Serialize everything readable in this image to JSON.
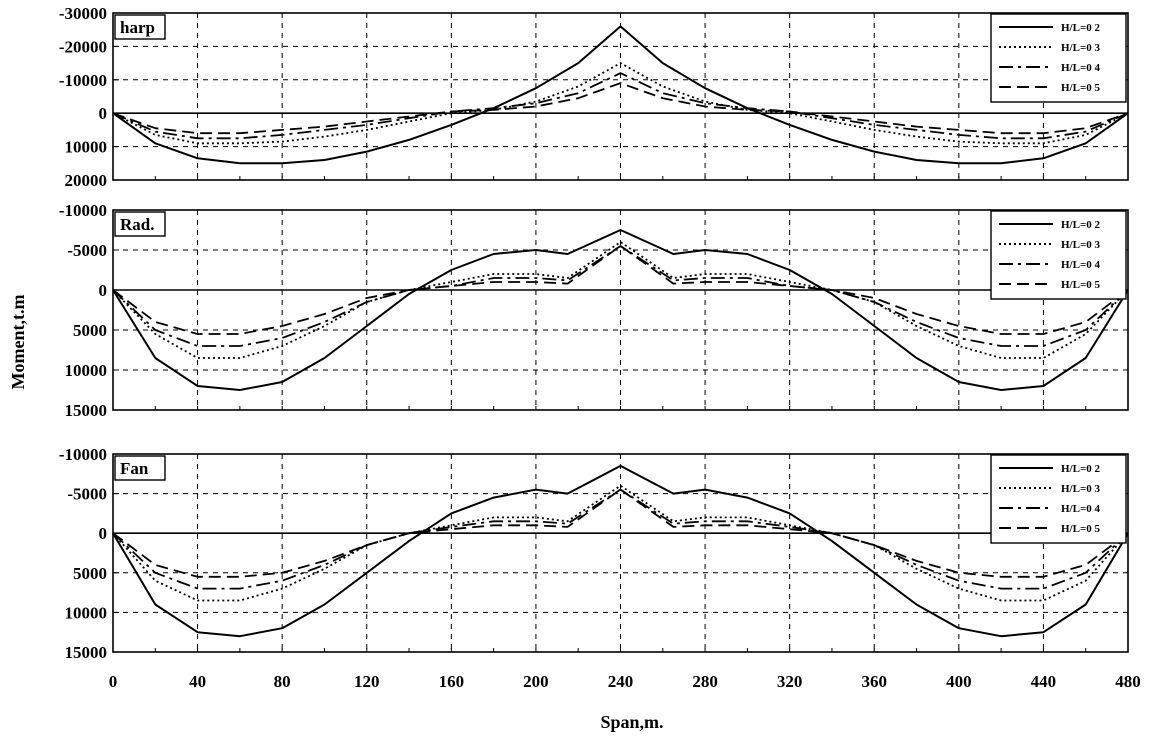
{
  "chart_data": {
    "type": "line",
    "xlabel": "Span,m.",
    "ylabel": "Moment,t.m",
    "x_ticks": [
      "0",
      "40",
      "80",
      "120",
      "160",
      "200",
      "240",
      "280",
      "320",
      "360",
      "400",
      "440",
      "480"
    ],
    "xlim": [
      0,
      480
    ],
    "grid": true,
    "legend_position": "top-right",
    "line_styles": [
      "solid",
      "dotted",
      "dashdot",
      "dashed"
    ],
    "panels": [
      {
        "title": "harp",
        "y_ticks": [
          "-30000",
          "-20000",
          "-10000",
          "0",
          "10000",
          "20000"
        ],
        "ylim": [
          -30000,
          20000
        ],
        "y_inverted": true,
        "legend": [
          "H/L=0 2",
          "H/L=0 3",
          "H/L=0 4",
          "H/L=0 5"
        ],
        "series": [
          {
            "name": "H/L=0 2",
            "x": [
              0,
              20,
              40,
              60,
              80,
              100,
              120,
              140,
              160,
              180,
              200,
              220,
              240,
              260,
              280,
              300,
              320,
              340,
              360,
              380,
              400,
              420,
              440,
              460,
              480
            ],
            "y": [
              0,
              9000,
              13500,
              15000,
              15000,
              14000,
              11500,
              8000,
              3500,
              -1500,
              -7500,
              -15000,
              -26000,
              -15000,
              -7500,
              -1500,
              3500,
              8000,
              11500,
              14000,
              15000,
              15000,
              13500,
              9000,
              0
            ]
          },
          {
            "name": "H/L=0 3",
            "x": [
              0,
              20,
              40,
              60,
              80,
              100,
              120,
              140,
              160,
              180,
              200,
              220,
              240,
              260,
              280,
              300,
              320,
              340,
              360,
              380,
              400,
              420,
              440,
              460,
              480
            ],
            "y": [
              0,
              6500,
              9000,
              9000,
              8500,
              7000,
              5000,
              2500,
              0,
              -1000,
              -3500,
              -8000,
              -15000,
              -8000,
              -3500,
              -1000,
              0,
              2500,
              5000,
              7000,
              8500,
              9000,
              9000,
              6500,
              0
            ]
          },
          {
            "name": "H/L=0 4",
            "x": [
              0,
              20,
              40,
              60,
              80,
              100,
              120,
              140,
              160,
              180,
              200,
              220,
              240,
              260,
              280,
              300,
              320,
              340,
              360,
              380,
              400,
              420,
              440,
              460,
              480
            ],
            "y": [
              0,
              5500,
              7500,
              7500,
              6500,
              5000,
              3500,
              1500,
              -500,
              -1500,
              -3000,
              -6000,
              -12000,
              -6000,
              -3000,
              -1500,
              -500,
              1500,
              3500,
              5000,
              6500,
              7500,
              7500,
              5500,
              0
            ]
          },
          {
            "name": "H/L=0 5",
            "x": [
              0,
              20,
              40,
              60,
              80,
              100,
              120,
              140,
              160,
              180,
              200,
              220,
              240,
              260,
              280,
              300,
              320,
              340,
              360,
              380,
              400,
              420,
              440,
              460,
              480
            ],
            "y": [
              0,
              4500,
              6000,
              6000,
              5000,
              4000,
              2500,
              1000,
              -500,
              -1000,
              -2000,
              -4500,
              -9000,
              -4500,
              -2000,
              -1000,
              -500,
              1000,
              2500,
              4000,
              5000,
              6000,
              6000,
              4500,
              0
            ]
          }
        ]
      },
      {
        "title": "Rad.",
        "y_ticks": [
          "-10000",
          "-5000",
          "0",
          "5000",
          "10000",
          "15000"
        ],
        "ylim": [
          -10000,
          15000
        ],
        "y_inverted": true,
        "legend": [
          "H/L=0 2",
          "H/L=0 3",
          "H/L=0 4",
          "H/L=0 5"
        ],
        "series": [
          {
            "name": "H/L=0 2",
            "x": [
              0,
              20,
              40,
              60,
              80,
              100,
              120,
              140,
              160,
              180,
              200,
              215,
              240,
              265,
              280,
              300,
              320,
              340,
              360,
              380,
              400,
              420,
              440,
              460,
              480
            ],
            "y": [
              0,
              8500,
              12000,
              12500,
              11500,
              8500,
              4500,
              500,
              -2500,
              -4500,
              -5000,
              -4500,
              -7500,
              -4500,
              -5000,
              -4500,
              -2500,
              500,
              4500,
              8500,
              11500,
              12500,
              12000,
              8500,
              0
            ]
          },
          {
            "name": "H/L=0 3",
            "x": [
              0,
              20,
              40,
              60,
              80,
              100,
              120,
              140,
              160,
              180,
              200,
              215,
              240,
              265,
              280,
              300,
              320,
              340,
              360,
              380,
              400,
              420,
              440,
              460,
              480
            ],
            "y": [
              0,
              5500,
              8500,
              8500,
              7000,
              4500,
              1500,
              0,
              -1000,
              -2000,
              -2000,
              -1500,
              -6000,
              -1500,
              -2000,
              -2000,
              -1000,
              0,
              1500,
              4500,
              7000,
              8500,
              8500,
              5500,
              0
            ]
          },
          {
            "name": "H/L=0 4",
            "x": [
              0,
              20,
              40,
              60,
              80,
              100,
              120,
              140,
              160,
              180,
              200,
              215,
              240,
              265,
              280,
              300,
              320,
              340,
              360,
              380,
              400,
              420,
              440,
              460,
              480
            ],
            "y": [
              0,
              5000,
              7000,
              7000,
              6000,
              4000,
              1500,
              0,
              -500,
              -1500,
              -1500,
              -1200,
              -5500,
              -1200,
              -1500,
              -1500,
              -500,
              0,
              1500,
              4000,
              6000,
              7000,
              7000,
              5000,
              0
            ]
          },
          {
            "name": "H/L=0 5",
            "x": [
              0,
              20,
              40,
              60,
              80,
              100,
              120,
              140,
              160,
              180,
              200,
              215,
              240,
              265,
              280,
              300,
              320,
              340,
              360,
              380,
              400,
              420,
              440,
              460,
              480
            ],
            "y": [
              0,
              4000,
              5500,
              5500,
              4500,
              3000,
              1000,
              0,
              -500,
              -1000,
              -1000,
              -800,
              -5500,
              -800,
              -1000,
              -1000,
              -500,
              0,
              1000,
              3000,
              4500,
              5500,
              5500,
              4000,
              0
            ]
          }
        ]
      },
      {
        "title": "Fan",
        "y_ticks": [
          "-10000",
          "-5000",
          "0",
          "5000",
          "10000",
          "15000"
        ],
        "ylim": [
          -10000,
          15000
        ],
        "y_inverted": true,
        "legend": [
          "H/L=0 2",
          "H/L=0 3",
          "H/L=0 4",
          "H/L=0 5"
        ],
        "series": [
          {
            "name": "H/L=0 2",
            "x": [
              0,
              20,
              40,
              60,
              80,
              100,
              120,
              140,
              160,
              180,
              200,
              215,
              240,
              265,
              280,
              300,
              320,
              340,
              360,
              380,
              400,
              420,
              440,
              460,
              480
            ],
            "y": [
              0,
              9000,
              12500,
              13000,
              12000,
              9000,
              5000,
              1000,
              -2500,
              -4500,
              -5500,
              -5000,
              -8500,
              -5000,
              -5500,
              -4500,
              -2500,
              1000,
              5000,
              9000,
              12000,
              13000,
              12500,
              9000,
              0
            ]
          },
          {
            "name": "H/L=0 3",
            "x": [
              0,
              20,
              40,
              60,
              80,
              100,
              120,
              140,
              160,
              180,
              200,
              215,
              240,
              265,
              280,
              300,
              320,
              340,
              360,
              380,
              400,
              420,
              440,
              460,
              480
            ],
            "y": [
              0,
              6000,
              8500,
              8500,
              7000,
              4500,
              1500,
              0,
              -1000,
              -2000,
              -2000,
              -1500,
              -6000,
              -1500,
              -2000,
              -2000,
              -1000,
              0,
              1500,
              4500,
              7000,
              8500,
              8500,
              6000,
              0
            ]
          },
          {
            "name": "H/L=0 4",
            "x": [
              0,
              20,
              40,
              60,
              80,
              100,
              120,
              140,
              160,
              180,
              200,
              215,
              240,
              265,
              280,
              300,
              320,
              340,
              360,
              380,
              400,
              420,
              440,
              460,
              480
            ],
            "y": [
              0,
              5000,
              7000,
              7000,
              6000,
              4000,
              1500,
              0,
              -800,
              -1500,
              -1500,
              -1200,
              -5500,
              -1200,
              -1500,
              -1500,
              -800,
              0,
              1500,
              4000,
              6000,
              7000,
              7000,
              5000,
              0
            ]
          },
          {
            "name": "H/L=0 5",
            "x": [
              0,
              20,
              40,
              60,
              80,
              100,
              120,
              140,
              160,
              180,
              200,
              215,
              240,
              265,
              280,
              300,
              320,
              340,
              360,
              380,
              400,
              420,
              440,
              460,
              480
            ],
            "y": [
              0,
              4000,
              5500,
              5500,
              5000,
              3500,
              1500,
              0,
              -500,
              -1000,
              -1000,
              -800,
              -5500,
              -800,
              -1000,
              -1000,
              -500,
              0,
              1500,
              3500,
              5000,
              5500,
              5500,
              4000,
              0
            ]
          }
        ]
      }
    ]
  }
}
